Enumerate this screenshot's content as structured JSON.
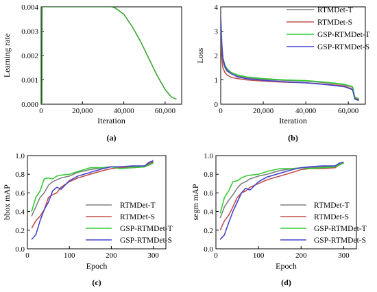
{
  "chart_data": [
    {
      "type": "line",
      "panel_label": "(a)",
      "xlabel": "Iteration",
      "ylabel": "Learning rate",
      "xlim": [
        0,
        68000
      ],
      "ylim": [
        0,
        0.004
      ],
      "xticks": [
        0,
        20000,
        40000,
        60000
      ],
      "xtick_labels": [
        "0",
        "20,000",
        "40,000",
        "60,000"
      ],
      "yticks": [
        0,
        0.001,
        0.002,
        0.003,
        0.004
      ],
      "ytick_labels": [
        "0.000",
        "0.001",
        "0.002",
        "0.003",
        "0.004"
      ],
      "grid": false,
      "legend": null,
      "series": [
        {
          "color": "#3aa635",
          "x": [
            0,
            400,
            500,
            1000,
            1500,
            34000,
            36000,
            40000,
            44000,
            48000,
            52000,
            56000,
            60000,
            63000,
            65500
          ],
          "y": [
            0,
            0,
            0.004,
            0.004,
            0.004,
            0.004,
            0.00395,
            0.0037,
            0.0032,
            0.0026,
            0.0019,
            0.0012,
            0.0006,
            0.0003,
            0.0002
          ]
        }
      ]
    },
    {
      "type": "line",
      "panel_label": "(b)",
      "xlabel": "Iteration",
      "ylabel": "Loss",
      "xlim": [
        0,
        68000
      ],
      "ylim": [
        0,
        4
      ],
      "xticks": [
        0,
        20000,
        40000,
        60000
      ],
      "xtick_labels": [
        "0",
        "20,000",
        "40,000",
        "60,000"
      ],
      "yticks": [
        0,
        1,
        2,
        3,
        4
      ],
      "ytick_labels": [
        "0",
        "1",
        "2",
        "3",
        "4"
      ],
      "grid": false,
      "legend": "top-right",
      "series": [
        {
          "name": "RTMDet-T",
          "color": "#7f7f7f",
          "x": [
            0,
            500,
            1000,
            2000,
            3000,
            5000,
            8000,
            12000,
            20000,
            30000,
            40000,
            50000,
            58000,
            62000,
            63000,
            65000
          ],
          "y": [
            3.1,
            2.2,
            1.8,
            1.5,
            1.35,
            1.25,
            1.15,
            1.1,
            1.02,
            0.98,
            0.95,
            0.88,
            0.8,
            0.7,
            0.28,
            0.2
          ]
        },
        {
          "name": "RTMDet-S",
          "color": "#c0504d",
          "x": [
            0,
            500,
            1000,
            2000,
            3000,
            5000,
            8000,
            12000,
            20000,
            30000,
            40000,
            50000,
            58000,
            62000,
            63000,
            65000
          ],
          "y": [
            2.8,
            1.9,
            1.5,
            1.3,
            1.2,
            1.1,
            1.05,
            1.0,
            0.95,
            0.9,
            0.88,
            0.82,
            0.75,
            0.62,
            0.25,
            0.18
          ]
        },
        {
          "name": "GSP-RTMDet-T",
          "color": "#33cc33",
          "x": [
            0,
            500,
            1000,
            2000,
            3000,
            5000,
            8000,
            12000,
            20000,
            30000,
            40000,
            50000,
            58000,
            62000,
            63000,
            65000
          ],
          "y": [
            3.3,
            2.4,
            1.9,
            1.6,
            1.45,
            1.3,
            1.2,
            1.12,
            1.05,
            1.0,
            0.97,
            0.9,
            0.82,
            0.72,
            0.3,
            0.22
          ]
        },
        {
          "name": "GSP-RTMDet-S",
          "color": "#4444cc",
          "x": [
            0,
            500,
            1000,
            2000,
            3000,
            5000,
            8000,
            12000,
            20000,
            30000,
            40000,
            50000,
            58000,
            62000,
            63000,
            65000
          ],
          "y": [
            3.6,
            2.5,
            1.9,
            1.55,
            1.4,
            1.25,
            1.12,
            1.05,
            0.98,
            0.92,
            0.88,
            0.8,
            0.72,
            0.6,
            0.22,
            0.15
          ]
        }
      ]
    },
    {
      "type": "line",
      "panel_label": "(c)",
      "xlabel": "Epoch",
      "ylabel": "bbox mAP",
      "xlim": [
        0,
        330
      ],
      "ylim": [
        0,
        1.0
      ],
      "xticks": [
        0,
        100,
        200,
        300
      ],
      "xtick_labels": [
        "0",
        "100",
        "200",
        "300"
      ],
      "yticks": [
        0,
        0.2,
        0.4,
        0.6,
        0.8,
        1.0
      ],
      "ytick_labels": [
        "0.0",
        "0.2",
        "0.4",
        "0.6",
        "0.8",
        "1.0"
      ],
      "grid": false,
      "legend": "bottom-right",
      "series": [
        {
          "name": "RTMDet-T",
          "color": "#7f7f7f",
          "x": [
            10,
            20,
            30,
            40,
            50,
            60,
            70,
            80,
            100,
            120,
            150,
            180,
            200,
            220,
            250,
            280,
            290,
            300
          ],
          "y": [
            0.35,
            0.45,
            0.55,
            0.6,
            0.68,
            0.72,
            0.74,
            0.76,
            0.78,
            0.82,
            0.85,
            0.87,
            0.88,
            0.87,
            0.88,
            0.89,
            0.92,
            0.95
          ]
        },
        {
          "name": "RTMDet-S",
          "color": "#c0504d",
          "x": [
            10,
            20,
            30,
            40,
            50,
            60,
            70,
            80,
            100,
            120,
            150,
            180,
            200,
            220,
            250,
            280,
            290,
            300
          ],
          "y": [
            0.22,
            0.3,
            0.35,
            0.42,
            0.55,
            0.58,
            0.6,
            0.66,
            0.72,
            0.76,
            0.8,
            0.84,
            0.86,
            0.87,
            0.87,
            0.88,
            0.91,
            0.93
          ]
        },
        {
          "name": "GSP-RTMDet-T",
          "color": "#33cc33",
          "x": [
            10,
            20,
            30,
            40,
            50,
            60,
            70,
            80,
            100,
            120,
            150,
            180,
            200,
            220,
            250,
            280,
            290,
            300
          ],
          "y": [
            0.4,
            0.55,
            0.62,
            0.75,
            0.76,
            0.75,
            0.78,
            0.79,
            0.8,
            0.83,
            0.87,
            0.87,
            0.88,
            0.86,
            0.87,
            0.88,
            0.9,
            0.92
          ]
        },
        {
          "name": "GSP-RTMDet-S",
          "color": "#4444cc",
          "x": [
            10,
            20,
            30,
            40,
            50,
            60,
            70,
            80,
            100,
            120,
            150,
            180,
            200,
            220,
            250,
            280,
            290,
            300
          ],
          "y": [
            0.1,
            0.15,
            0.3,
            0.42,
            0.5,
            0.62,
            0.66,
            0.64,
            0.73,
            0.78,
            0.82,
            0.86,
            0.88,
            0.88,
            0.89,
            0.89,
            0.93,
            0.94
          ]
        }
      ]
    },
    {
      "type": "line",
      "panel_label": "(d)",
      "xlabel": "Epoch",
      "ylabel": "segm mAP",
      "xlim": [
        0,
        330
      ],
      "ylim": [
        0,
        1.0
      ],
      "xticks": [
        0,
        100,
        200,
        300
      ],
      "xtick_labels": [
        "0",
        "100",
        "200",
        "300"
      ],
      "yticks": [
        0,
        0.2,
        0.4,
        0.6,
        0.8,
        1.0
      ],
      "ytick_labels": [
        "0.0",
        "0.2",
        "0.4",
        "0.6",
        "0.8",
        "1.0"
      ],
      "grid": false,
      "legend": "bottom-right",
      "series": [
        {
          "name": "RTMDet-T",
          "color": "#7f7f7f",
          "x": [
            10,
            20,
            30,
            40,
            50,
            60,
            70,
            80,
            100,
            120,
            150,
            180,
            200,
            220,
            250,
            280,
            290,
            300
          ],
          "y": [
            0.33,
            0.45,
            0.52,
            0.58,
            0.65,
            0.7,
            0.72,
            0.75,
            0.78,
            0.8,
            0.84,
            0.86,
            0.87,
            0.87,
            0.88,
            0.89,
            0.91,
            0.93
          ]
        },
        {
          "name": "RTMDet-S",
          "color": "#c0504d",
          "x": [
            10,
            20,
            30,
            40,
            50,
            60,
            70,
            80,
            100,
            120,
            150,
            180,
            200,
            220,
            250,
            280,
            290,
            300
          ],
          "y": [
            0.2,
            0.3,
            0.36,
            0.45,
            0.55,
            0.6,
            0.62,
            0.66,
            0.7,
            0.74,
            0.78,
            0.82,
            0.85,
            0.86,
            0.86,
            0.87,
            0.9,
            0.92
          ]
        },
        {
          "name": "GSP-RTMDet-T",
          "color": "#33cc33",
          "x": [
            10,
            20,
            30,
            40,
            50,
            60,
            70,
            80,
            100,
            120,
            150,
            180,
            200,
            220,
            250,
            280,
            290,
            300
          ],
          "y": [
            0.38,
            0.55,
            0.62,
            0.72,
            0.73,
            0.76,
            0.78,
            0.79,
            0.8,
            0.83,
            0.86,
            0.86,
            0.87,
            0.86,
            0.87,
            0.88,
            0.9,
            0.92
          ]
        },
        {
          "name": "GSP-RTMDet-S",
          "color": "#4444cc",
          "x": [
            10,
            20,
            30,
            40,
            50,
            60,
            70,
            80,
            100,
            120,
            150,
            180,
            200,
            220,
            250,
            280,
            290,
            300
          ],
          "y": [
            0.1,
            0.15,
            0.28,
            0.4,
            0.5,
            0.6,
            0.65,
            0.63,
            0.72,
            0.77,
            0.81,
            0.85,
            0.87,
            0.88,
            0.89,
            0.89,
            0.92,
            0.93
          ]
        }
      ]
    }
  ]
}
